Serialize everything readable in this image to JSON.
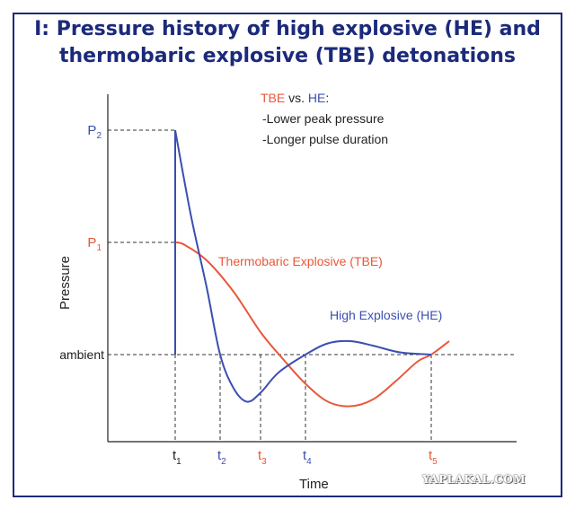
{
  "title_line1": "I: Pressure history of high explosive (HE) and",
  "title_line2": "thermobaric explosive (TBE) detonations",
  "watermark": "YAPLAKAL.COM",
  "colors": {
    "title": "#1b2a7a",
    "he": "#3a4fb0",
    "tbe": "#e8583a",
    "axis": "#222222"
  },
  "chart_data": {
    "type": "line",
    "xlabel": "Time",
    "ylabel": "Pressure",
    "x_ticks": [
      {
        "main": "t",
        "sub": "1",
        "color": "#222222"
      },
      {
        "main": "t",
        "sub": "2",
        "color": "#3a4fb0"
      },
      {
        "main": "t",
        "sub": "3",
        "color": "#e8583a"
      },
      {
        "main": "t",
        "sub": "4",
        "color": "#3a4fb0"
      },
      {
        "main": "t",
        "sub": "5",
        "color": "#e8583a"
      }
    ],
    "y_ticks": [
      {
        "main": "P",
        "sub": "2",
        "color": "#3a4fb0"
      },
      {
        "main": "P",
        "sub": "1",
        "color": "#e8583a"
      },
      {
        "main": "ambient",
        "sub": "",
        "color": "#222222"
      }
    ],
    "legend": {
      "tbe": "TBE",
      "vs": " vs. ",
      "he": "HE",
      "colon": ":",
      "line1": "-Lower peak pressure",
      "line2": "-Longer pulse duration"
    },
    "series": [
      {
        "name": "Thermobaric Explosive (TBE)",
        "color": "#e8583a",
        "points": [
          [
            0,
            0
          ],
          [
            0,
            0.5
          ],
          [
            0.2,
            0.49
          ],
          [
            0.7,
            0.42
          ],
          [
            1.3,
            0.28
          ],
          [
            1.9,
            0.1
          ],
          [
            2.4,
            -0.02
          ],
          [
            2.9,
            -0.13
          ],
          [
            3.4,
            -0.21
          ],
          [
            3.9,
            -0.23
          ],
          [
            4.4,
            -0.2
          ],
          [
            4.9,
            -0.12
          ],
          [
            5.4,
            -0.03
          ],
          [
            5.7,
            0
          ],
          [
            6.1,
            0.06
          ]
        ]
      },
      {
        "name": "High Explosive (HE)",
        "color": "#3a4fb0",
        "points": [
          [
            0,
            0
          ],
          [
            0,
            1
          ],
          [
            0.35,
            0.62
          ],
          [
            0.7,
            0.3
          ],
          [
            1.0,
            0
          ],
          [
            1.3,
            -0.15
          ],
          [
            1.6,
            -0.21
          ],
          [
            1.9,
            -0.17
          ],
          [
            2.3,
            -0.08
          ],
          [
            2.9,
            0
          ],
          [
            3.4,
            0.05
          ],
          [
            3.9,
            0.06
          ],
          [
            4.4,
            0.04
          ],
          [
            5.0,
            0.01
          ],
          [
            5.7,
            0
          ]
        ]
      }
    ]
  }
}
